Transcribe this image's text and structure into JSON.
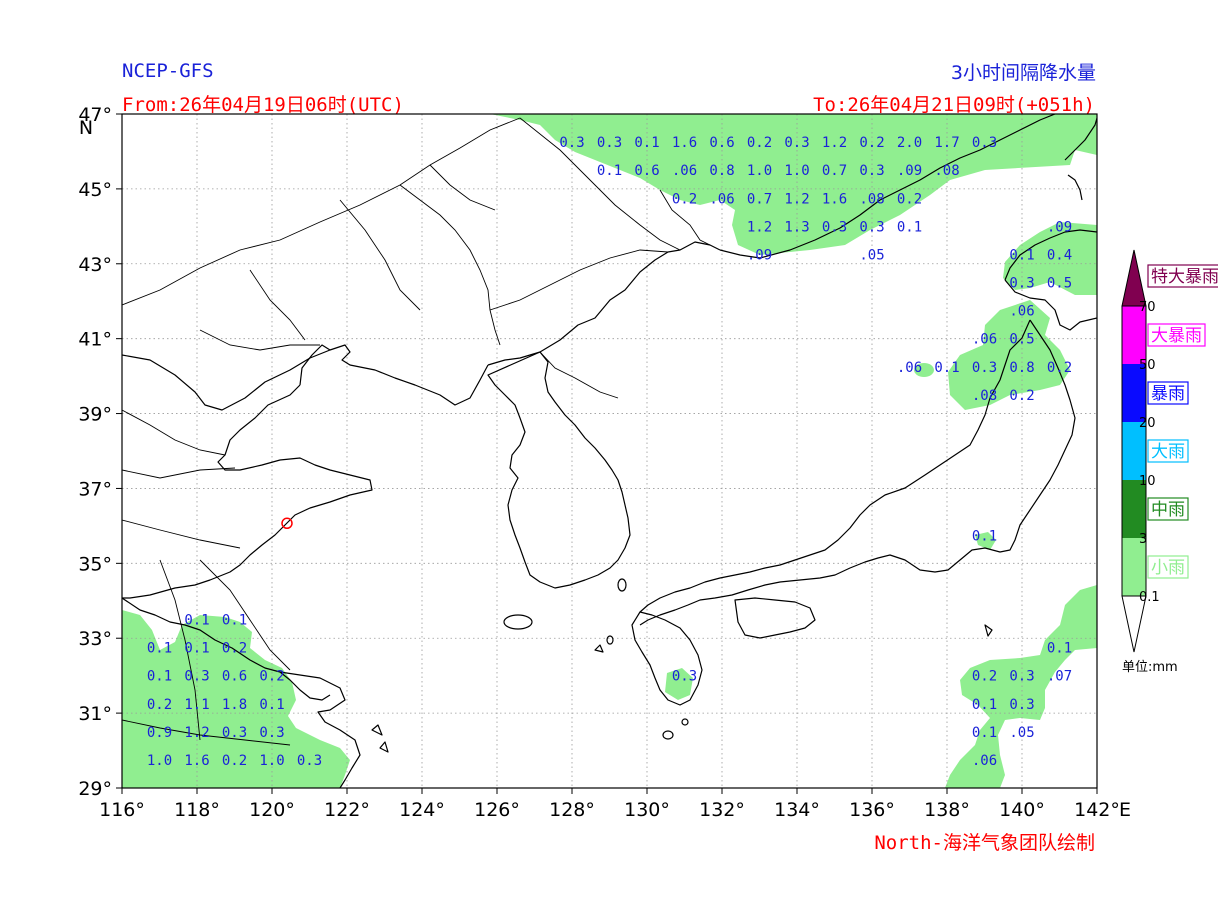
{
  "header": {
    "model": "NCEP-GFS",
    "product": "3小时间隔降水量",
    "from": "From:26年04月19日06时(UTC)",
    "to": "To:26年04月21日09时(+051h)",
    "credit": "North-海洋气象团队绘制"
  },
  "axes": {
    "lon_min": 116,
    "lon_max": 142,
    "lat_min": 29,
    "lat_max": 47,
    "lon_ticks": [
      "116°",
      "118°",
      "120°",
      "122°",
      "124°",
      "126°",
      "128°",
      "130°",
      "132°",
      "134°",
      "136°",
      "138°",
      "140°",
      "142°"
    ],
    "lat_ticks": [
      "29°",
      "31°",
      "33°",
      "35°",
      "37°",
      "39°",
      "41°",
      "43°",
      "45°",
      "47°"
    ],
    "east_label": "E",
    "north_label": "N",
    "grid": "dotted"
  },
  "legend": {
    "unit_label": "单位:mm",
    "classes": [
      {
        "name": "特大暴雨",
        "color": "#800050"
      },
      {
        "name": "大暴雨",
        "color": "#ff00ff"
      },
      {
        "name": "暴雨",
        "color": "#0a0aff"
      },
      {
        "name": "大雨",
        "color": "#00bfff"
      },
      {
        "name": "中雨",
        "color": "#228b22"
      },
      {
        "name": "小雨",
        "color": "#90ee90"
      }
    ],
    "thresholds": [
      "70",
      "50",
      "20",
      "10",
      "3",
      "0.1"
    ]
  },
  "station": {
    "name": "station-marker",
    "lon": 120.4,
    "lat": 36.07,
    "color": "#ff0000"
  },
  "rain_color": "#90ee90",
  "rain_values": [
    {
      "t": "0.3",
      "lon": 128.0,
      "lat": 46.25
    },
    {
      "t": "0.3",
      "lon": 129.0,
      "lat": 46.25
    },
    {
      "t": "0.1",
      "lon": 130.0,
      "lat": 46.25
    },
    {
      "t": "1.6",
      "lon": 131.0,
      "lat": 46.25
    },
    {
      "t": "0.6",
      "lon": 132.0,
      "lat": 46.25
    },
    {
      "t": "0.2",
      "lon": 133.0,
      "lat": 46.25
    },
    {
      "t": "0.3",
      "lon": 134.0,
      "lat": 46.25
    },
    {
      "t": "1.2",
      "lon": 135.0,
      "lat": 46.25
    },
    {
      "t": "0.2",
      "lon": 136.0,
      "lat": 46.25
    },
    {
      "t": "2.0",
      "lon": 137.0,
      "lat": 46.25
    },
    {
      "t": "1.7",
      "lon": 138.0,
      "lat": 46.25
    },
    {
      "t": "0.3",
      "lon": 139.0,
      "lat": 46.25
    },
    {
      "t": "0.1",
      "lon": 129.0,
      "lat": 45.5
    },
    {
      "t": "0.6",
      "lon": 130.0,
      "lat": 45.5
    },
    {
      "t": ".06",
      "lon": 131.0,
      "lat": 45.5
    },
    {
      "t": "0.8",
      "lon": 132.0,
      "lat": 45.5
    },
    {
      "t": "1.0",
      "lon": 133.0,
      "lat": 45.5
    },
    {
      "t": "1.0",
      "lon": 134.0,
      "lat": 45.5
    },
    {
      "t": "0.7",
      "lon": 135.0,
      "lat": 45.5
    },
    {
      "t": "0.3",
      "lon": 136.0,
      "lat": 45.5
    },
    {
      "t": ".09",
      "lon": 137.0,
      "lat": 45.5
    },
    {
      "t": ".08",
      "lon": 138.0,
      "lat": 45.5
    },
    {
      "t": "0.2",
      "lon": 131.0,
      "lat": 44.75
    },
    {
      "t": ".06",
      "lon": 132.0,
      "lat": 44.75
    },
    {
      "t": "0.7",
      "lon": 133.0,
      "lat": 44.75
    },
    {
      "t": "1.2",
      "lon": 134.0,
      "lat": 44.75
    },
    {
      "t": "1.6",
      "lon": 135.0,
      "lat": 44.75
    },
    {
      "t": ".08",
      "lon": 136.0,
      "lat": 44.75
    },
    {
      "t": "0.2",
      "lon": 137.0,
      "lat": 44.75
    },
    {
      "t": "1.2",
      "lon": 133.0,
      "lat": 44.0
    },
    {
      "t": "1.3",
      "lon": 134.0,
      "lat": 44.0
    },
    {
      "t": "0.3",
      "lon": 135.0,
      "lat": 44.0
    },
    {
      "t": "0.3",
      "lon": 136.0,
      "lat": 44.0
    },
    {
      "t": "0.1",
      "lon": 137.0,
      "lat": 44.0
    },
    {
      "t": ".09",
      "lon": 133.0,
      "lat": 43.25
    },
    {
      "t": ".05",
      "lon": 136.0,
      "lat": 43.25
    },
    {
      "t": ".09",
      "lon": 141.0,
      "lat": 44.0
    },
    {
      "t": "0.1",
      "lon": 140.0,
      "lat": 43.25
    },
    {
      "t": "0.4",
      "lon": 141.0,
      "lat": 43.25
    },
    {
      "t": "0.3",
      "lon": 140.0,
      "lat": 42.5
    },
    {
      "t": "0.5",
      "lon": 141.0,
      "lat": 42.5
    },
    {
      "t": ".06",
      "lon": 140.0,
      "lat": 41.75
    },
    {
      "t": ".06",
      "lon": 139.0,
      "lat": 41.0
    },
    {
      "t": "0.5",
      "lon": 140.0,
      "lat": 41.0
    },
    {
      "t": ".06",
      "lon": 137.0,
      "lat": 40.25
    },
    {
      "t": "0.1",
      "lon": 138.0,
      "lat": 40.25
    },
    {
      "t": "0.3",
      "lon": 139.0,
      "lat": 40.25
    },
    {
      "t": "0.8",
      "lon": 140.0,
      "lat": 40.25
    },
    {
      "t": "0.2",
      "lon": 141.0,
      "lat": 40.25
    },
    {
      "t": ".08",
      "lon": 139.0,
      "lat": 39.5
    },
    {
      "t": "0.2",
      "lon": 140.0,
      "lat": 39.5
    },
    {
      "t": "0.1",
      "lon": 139.0,
      "lat": 35.75
    },
    {
      "t": "0.1",
      "lon": 141.0,
      "lat": 32.75
    },
    {
      "t": "0.2",
      "lon": 139.0,
      "lat": 32.0
    },
    {
      "t": "0.3",
      "lon": 140.0,
      "lat": 32.0
    },
    {
      "t": ".07",
      "lon": 141.0,
      "lat": 32.0
    },
    {
      "t": "0.1",
      "lon": 139.0,
      "lat": 31.25
    },
    {
      "t": "0.3",
      "lon": 140.0,
      "lat": 31.25
    },
    {
      "t": "0.1",
      "lon": 139.0,
      "lat": 30.5
    },
    {
      "t": ".05",
      "lon": 140.0,
      "lat": 30.5
    },
    {
      "t": ".06",
      "lon": 139.0,
      "lat": 29.75
    },
    {
      "t": "0.3",
      "lon": 131.0,
      "lat": 32.0
    },
    {
      "t": "0.1",
      "lon": 118.0,
      "lat": 33.5
    },
    {
      "t": "0.1",
      "lon": 119.0,
      "lat": 33.5
    },
    {
      "t": "0.1",
      "lon": 117.0,
      "lat": 32.75
    },
    {
      "t": "0.1",
      "lon": 118.0,
      "lat": 32.75
    },
    {
      "t": "0.2",
      "lon": 119.0,
      "lat": 32.75
    },
    {
      "t": "0.1",
      "lon": 117.0,
      "lat": 32.0
    },
    {
      "t": "0.3",
      "lon": 118.0,
      "lat": 32.0
    },
    {
      "t": "0.6",
      "lon": 119.0,
      "lat": 32.0
    },
    {
      "t": "0.2",
      "lon": 120.0,
      "lat": 32.0
    },
    {
      "t": "0.2",
      "lon": 117.0,
      "lat": 31.25
    },
    {
      "t": "1.1",
      "lon": 118.0,
      "lat": 31.25
    },
    {
      "t": "1.8",
      "lon": 119.0,
      "lat": 31.25
    },
    {
      "t": "0.1",
      "lon": 120.0,
      "lat": 31.25
    },
    {
      "t": "0.9",
      "lon": 117.0,
      "lat": 30.5
    },
    {
      "t": "1.2",
      "lon": 118.0,
      "lat": 30.5
    },
    {
      "t": "0.3",
      "lon": 119.0,
      "lat": 30.5
    },
    {
      "t": "0.3",
      "lon": 120.0,
      "lat": 30.5
    },
    {
      "t": "1.0",
      "lon": 117.0,
      "lat": 29.75
    },
    {
      "t": "1.6",
      "lon": 118.0,
      "lat": 29.75
    },
    {
      "t": "0.2",
      "lon": 119.0,
      "lat": 29.75
    },
    {
      "t": "1.0",
      "lon": 120.0,
      "lat": 29.75
    },
    {
      "t": "0.3",
      "lon": 121.0,
      "lat": 29.75
    }
  ]
}
